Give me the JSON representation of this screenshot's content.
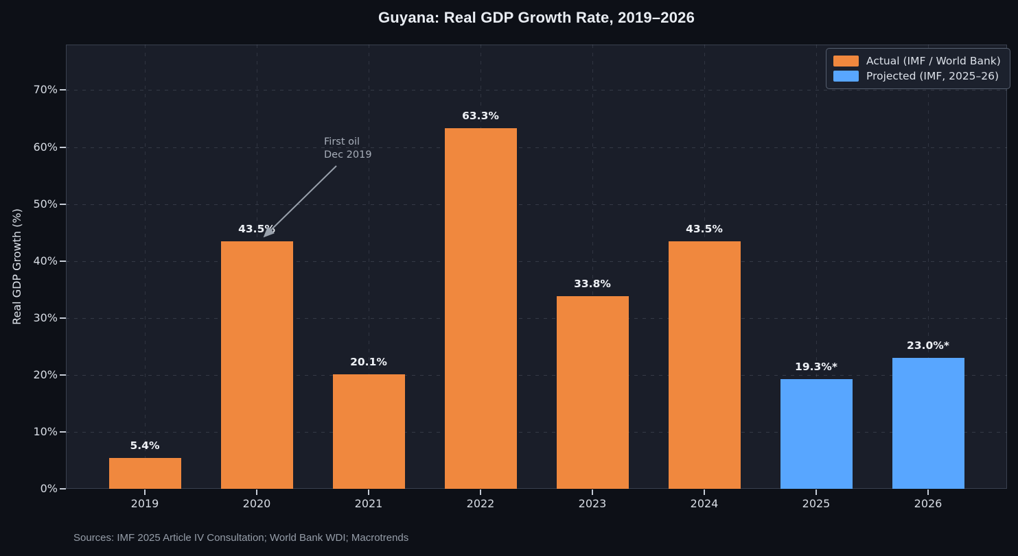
{
  "title": "Guyana: Real GDP Growth Rate, 2019–2026",
  "source_note": "Sources: IMF 2025 Article IV Consultation; World Bank WDI; Macrotrends",
  "chart_data": {
    "type": "bar",
    "title": "Guyana: Real GDP Growth Rate, 2019–2026",
    "xlabel": "",
    "ylabel": "Real GDP Growth (%)",
    "categories": [
      "2019",
      "2020",
      "2021",
      "2022",
      "2023",
      "2024",
      "2025",
      "2026"
    ],
    "values": [
      5.4,
      43.5,
      20.1,
      63.3,
      33.8,
      43.5,
      19.3,
      23.0
    ],
    "bar_labels": [
      "5.4%",
      "43.5%",
      "20.1%",
      "63.3%",
      "33.8%",
      "43.5%",
      "19.3%*",
      "23.0%*"
    ],
    "bar_series": [
      "actual",
      "actual",
      "actual",
      "actual",
      "actual",
      "actual",
      "projected",
      "projected"
    ],
    "series_colors": {
      "actual": "#f0883e",
      "projected": "#58a6ff"
    },
    "legend": {
      "position": "upper right",
      "items": [
        {
          "label": "Actual (IMF / World Bank)",
          "color": "#f0883e"
        },
        {
          "label": "Projected (IMF, 2025–26)",
          "color": "#58a6ff"
        }
      ]
    },
    "ylim": [
      0,
      78
    ],
    "yticks": [
      {
        "value": 0,
        "label": "0%"
      },
      {
        "value": 10,
        "label": "10%"
      },
      {
        "value": 20,
        "label": "20%"
      },
      {
        "value": 30,
        "label": "30%"
      },
      {
        "value": 40,
        "label": "40%"
      },
      {
        "value": 50,
        "label": "50%"
      },
      {
        "value": 60,
        "label": "60%"
      },
      {
        "value": 70,
        "label": "70%"
      }
    ],
    "grid": true,
    "annotation": {
      "lines": [
        "First oil",
        "Dec 2019"
      ],
      "arrow_points_to": "2020"
    },
    "colors": {
      "figure_bg": "#0d1017",
      "plot_bg": "#1a1e29",
      "label_text": "#eef1f6"
    }
  }
}
